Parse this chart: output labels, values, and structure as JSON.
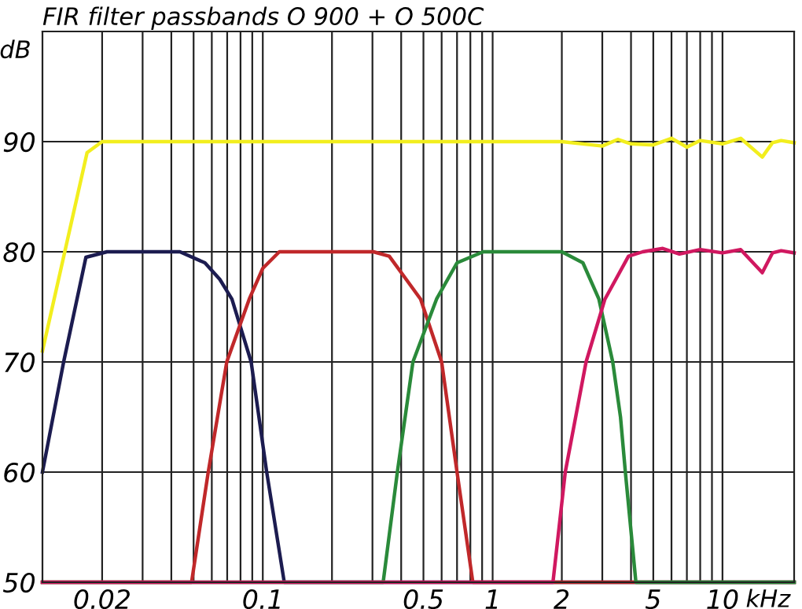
{
  "chart_data": {
    "type": "line",
    "title": "FIR filter passbands O 900 + O 500C",
    "xlabel": "kHz",
    "ylabel": "dB",
    "log": "x",
    "grid": true,
    "marker": "none",
    "line_style": "solid",
    "xlim": [
      0.011,
      20.5
    ],
    "ylim": [
      50,
      100
    ],
    "xticks": [
      {
        "value": 0.02,
        "label": "0.02"
      },
      {
        "value": 0.03,
        "label": null
      },
      {
        "value": 0.04,
        "label": null
      },
      {
        "value": 0.05,
        "label": null
      },
      {
        "value": 0.06,
        "label": null
      },
      {
        "value": 0.07,
        "label": null
      },
      {
        "value": 0.08,
        "label": null
      },
      {
        "value": 0.09,
        "label": null
      },
      {
        "value": 0.1,
        "label": "0.1"
      },
      {
        "value": 0.2,
        "label": null
      },
      {
        "value": 0.3,
        "label": null
      },
      {
        "value": 0.4,
        "label": null
      },
      {
        "value": 0.5,
        "label": "0.5"
      },
      {
        "value": 0.6,
        "label": null
      },
      {
        "value": 0.7,
        "label": null
      },
      {
        "value": 0.8,
        "label": null
      },
      {
        "value": 0.9,
        "label": null
      },
      {
        "value": 1,
        "label": "1"
      },
      {
        "value": 2,
        "label": "2"
      },
      {
        "value": 3,
        "label": null
      },
      {
        "value": 4,
        "label": null
      },
      {
        "value": 5,
        "label": "5"
      },
      {
        "value": 6,
        "label": null
      },
      {
        "value": 7,
        "label": null
      },
      {
        "value": 8,
        "label": null
      },
      {
        "value": 9,
        "label": null
      },
      {
        "value": 10,
        "label": "10"
      }
    ],
    "yticks": [
      50,
      60,
      70,
      80,
      90,
      {
        "value": 100,
        "label": null
      }
    ],
    "series": [
      {
        "color": "#f2ee1e",
        "x": [
          0.011,
          0.0172,
          0.02,
          0.05,
          0.2,
          1,
          2,
          3,
          3.5,
          4,
          5,
          6,
          7,
          8,
          10,
          12,
          14.9,
          16.5,
          18,
          20.5
        ],
        "values": [
          71,
          89,
          90,
          90,
          90,
          90,
          90,
          89.6,
          90.2,
          89.8,
          89.7,
          90.3,
          89.5,
          90.1,
          89.8,
          90.3,
          88.6,
          89.9,
          90.1,
          89.9
        ]
      },
      {
        "color": "#1c1c50",
        "x": [
          0.011,
          0.0136,
          0.017,
          0.021,
          0.0436,
          0.056,
          0.065,
          0.0734,
          0.089,
          0.104,
          0.124,
          20.5
        ],
        "values": [
          60,
          70,
          79.5,
          80,
          80,
          79,
          77.5,
          75.7,
          70,
          60,
          50,
          50
        ]
      },
      {
        "color": "#c0282a",
        "x": [
          0.011,
          0.049,
          0.0579,
          0.0697,
          0.0873,
          0.1,
          0.118,
          0.303,
          0.355,
          0.486,
          0.6,
          0.7,
          0.82,
          20.5
        ],
        "values": [
          50,
          50,
          60,
          70,
          75.7,
          78.5,
          80,
          80,
          79.6,
          75.7,
          70,
          60,
          50,
          50
        ]
      },
      {
        "color": "#2a8a3a",
        "x": [
          0.011,
          0.334,
          0.385,
          0.45,
          0.57,
          0.7,
          0.91,
          2.0,
          2.47,
          2.9,
          3.33,
          3.6,
          3.78,
          4.2,
          20.5
        ],
        "values": [
          50,
          50,
          60,
          70,
          75.7,
          79,
          80,
          80,
          79,
          75.7,
          70,
          65,
          60,
          50,
          50
        ]
      },
      {
        "color": "#d01860",
        "x": [
          0.011,
          1.83,
          2.07,
          2.55,
          3.08,
          3.9,
          4.5,
          5.5,
          6.5,
          8,
          10,
          12,
          14.9,
          16.5,
          18,
          20.5
        ],
        "values": [
          50,
          50,
          60,
          70,
          75.7,
          79.6,
          80,
          80.3,
          79.8,
          80.2,
          79.9,
          80.2,
          78.1,
          79.9,
          80.1,
          79.9
        ]
      }
    ]
  }
}
